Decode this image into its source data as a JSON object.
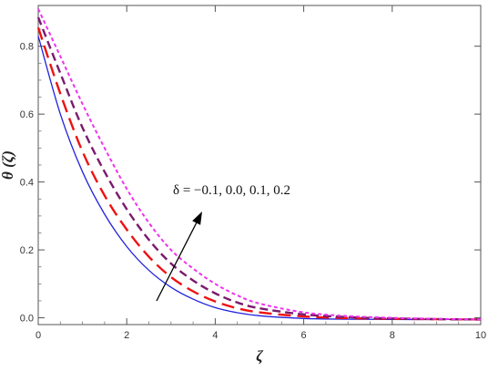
{
  "chart_data": {
    "type": "line",
    "xlabel": "ζ",
    "ylabel": "θ (ζ)",
    "xlim": [
      0,
      10
    ],
    "ylim": [
      -0.02,
      0.92
    ],
    "grid": false,
    "x_ticks": [
      0,
      2,
      4,
      6,
      8,
      10
    ],
    "x_tick_labels": [
      "0",
      "2",
      "4",
      "6",
      "8",
      "10"
    ],
    "y_ticks": [
      0.0,
      0.2,
      0.4,
      0.6,
      0.8
    ],
    "y_tick_labels": [
      "0.0",
      "0.2",
      "0.4",
      "0.6",
      "0.8"
    ],
    "annotation": {
      "text": "δ = −0.1, 0.0, 0.1, 0.2",
      "arrow_direction": "increasing δ (lower-left to upper-right)"
    },
    "series": [
      {
        "color": "#2222dd",
        "dash": "solid",
        "x": [
          0,
          0.5,
          1,
          1.5,
          2,
          2.5,
          3,
          3.5,
          4,
          4.5,
          5,
          6,
          7,
          8,
          9,
          10
        ],
        "y": [
          0.83,
          0.6,
          0.43,
          0.305,
          0.21,
          0.14,
          0.09,
          0.055,
          0.03,
          0.015,
          0.006,
          -0.002,
          -0.004,
          -0.005,
          -0.005,
          -0.005
        ]
      },
      {
        "color": "#ee1111",
        "dash": "long-dash",
        "x": [
          0,
          0.5,
          1,
          1.5,
          2,
          2.5,
          3,
          3.5,
          4,
          4.5,
          5,
          6,
          7,
          8,
          9,
          10
        ],
        "y": [
          0.855,
          0.66,
          0.49,
          0.36,
          0.26,
          0.18,
          0.12,
          0.078,
          0.048,
          0.028,
          0.016,
          0.004,
          -0.001,
          -0.003,
          -0.004,
          -0.005
        ]
      },
      {
        "color": "#7a1a6e",
        "dash": "medium-dash",
        "x": [
          0,
          0.5,
          1,
          1.5,
          2,
          2.5,
          3,
          3.5,
          4,
          4.5,
          5,
          6,
          7,
          8,
          9,
          10
        ],
        "y": [
          0.885,
          0.72,
          0.56,
          0.43,
          0.32,
          0.23,
          0.16,
          0.11,
          0.072,
          0.045,
          0.028,
          0.01,
          0.002,
          -0.002,
          -0.004,
          -0.005
        ]
      },
      {
        "color": "#ee33ee",
        "dash": "short-dash",
        "x": [
          0,
          0.5,
          1,
          1.5,
          2,
          2.5,
          3,
          3.5,
          4,
          4.5,
          5,
          6,
          7,
          8,
          9,
          10
        ],
        "y": [
          0.91,
          0.77,
          0.63,
          0.5,
          0.38,
          0.28,
          0.2,
          0.145,
          0.1,
          0.066,
          0.042,
          0.016,
          0.005,
          0.0,
          -0.003,
          -0.005
        ]
      }
    ]
  }
}
